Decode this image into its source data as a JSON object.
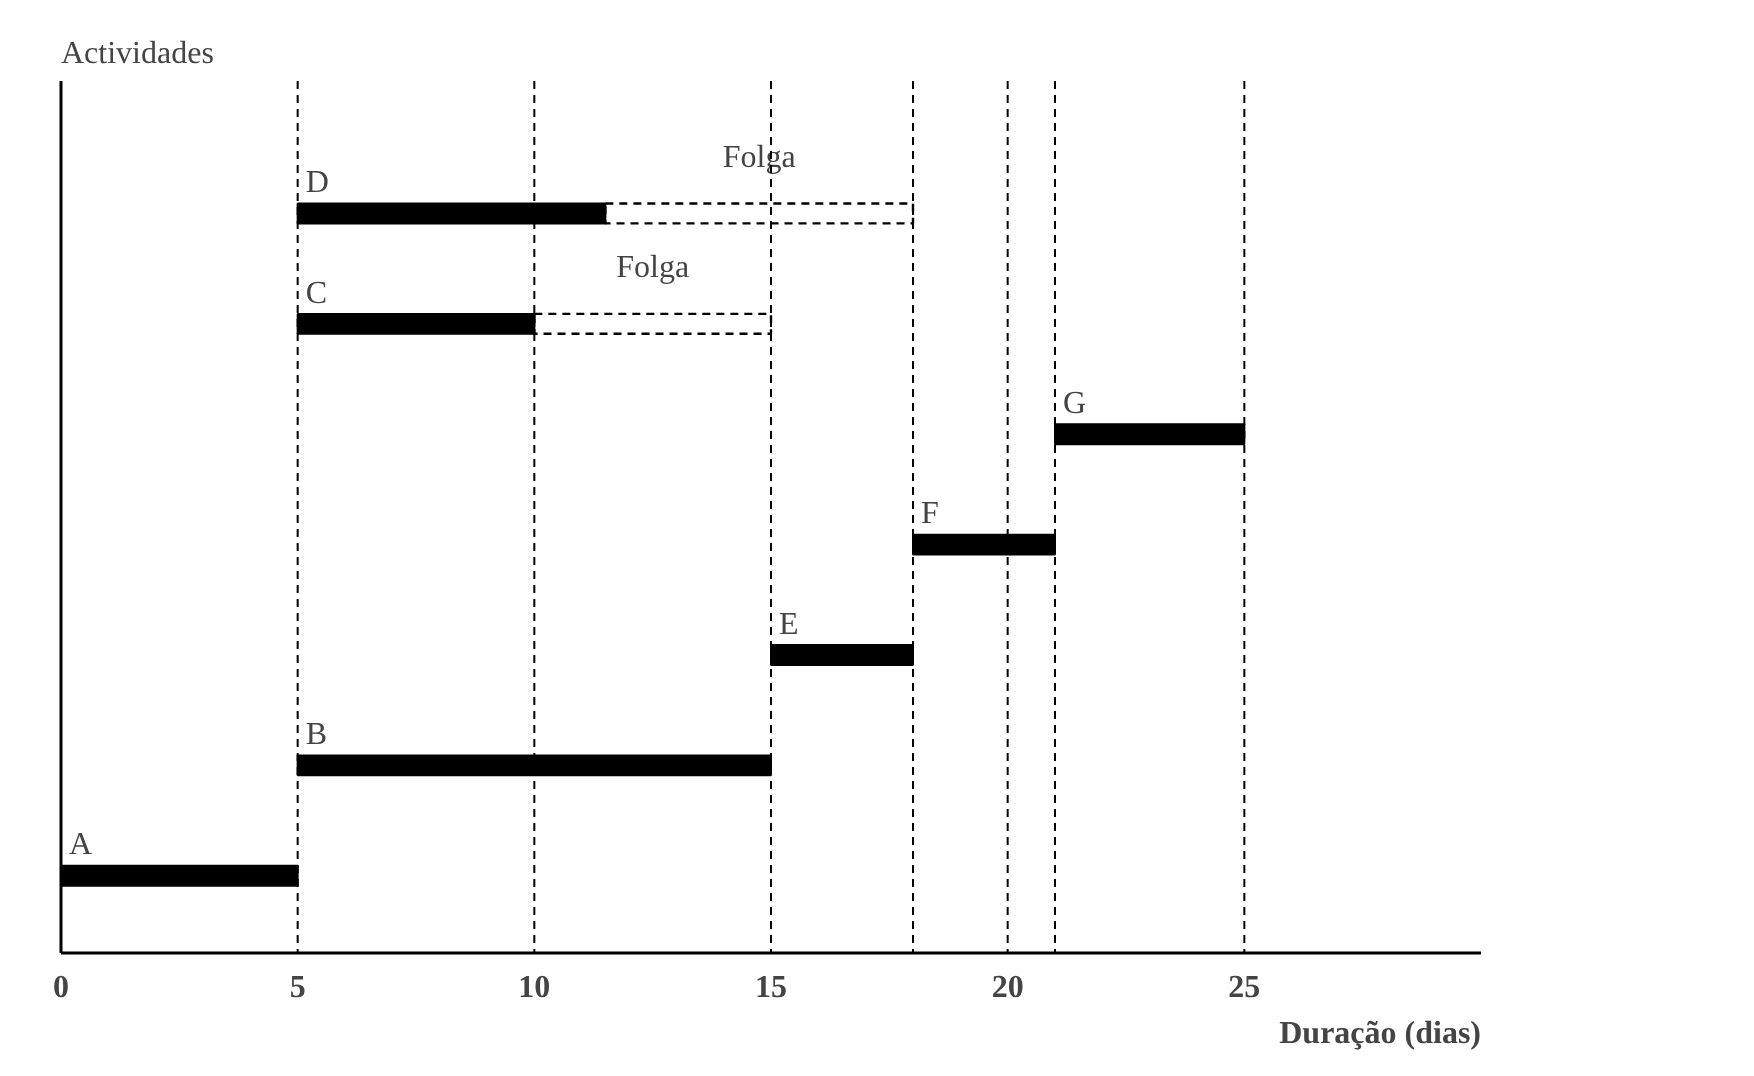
{
  "chart_data": {
    "type": "bar",
    "orientation": "horizontal",
    "ylabel": "Actividades",
    "xlabel": "Duração (dias)",
    "categories": [
      "D",
      "C",
      "G",
      "F",
      "E",
      "B",
      "A"
    ],
    "series": [
      {
        "color": "#000000",
        "base": [
          5,
          5,
          21,
          18,
          15,
          5,
          0
        ],
        "values": [
          6.5,
          5,
          4,
          3,
          3,
          10,
          5
        ]
      },
      {
        "color": "#000000",
        "line_style": "dashed",
        "base": [
          11.5,
          10,
          null,
          null,
          null,
          null,
          null
        ],
        "values": [
          6.5,
          5,
          null,
          null,
          null,
          null,
          null
        ]
      }
    ],
    "xlim": [
      0,
      30
    ],
    "xticks": [
      0,
      5,
      10,
      15,
      20,
      25
    ],
    "tick_labels": "x",
    "grid": false,
    "ref_lines": [
      {
        "axis": "x",
        "value": 5,
        "line_style": "dashed",
        "color": "#000000"
      },
      {
        "axis": "x",
        "value": 10,
        "line_style": "dashed",
        "color": "#000000"
      },
      {
        "axis": "x",
        "value": 15,
        "line_style": "dashed",
        "color": "#000000"
      },
      {
        "axis": "x",
        "value": 18,
        "line_style": "dashed",
        "color": "#000000"
      },
      {
        "axis": "x",
        "value": 20,
        "line_style": "dashed",
        "color": "#000000"
      },
      {
        "axis": "x",
        "value": 21,
        "line_style": "dashed",
        "color": "#000000"
      },
      {
        "axis": "x",
        "value": 25,
        "line_style": "dashed",
        "color": "#000000"
      }
    ],
    "annotations": [
      {
        "text": "Folga",
        "x": 14.75,
        "y": "D"
      },
      {
        "text": "Folga",
        "x": 12.5,
        "y": "C"
      }
    ]
  }
}
